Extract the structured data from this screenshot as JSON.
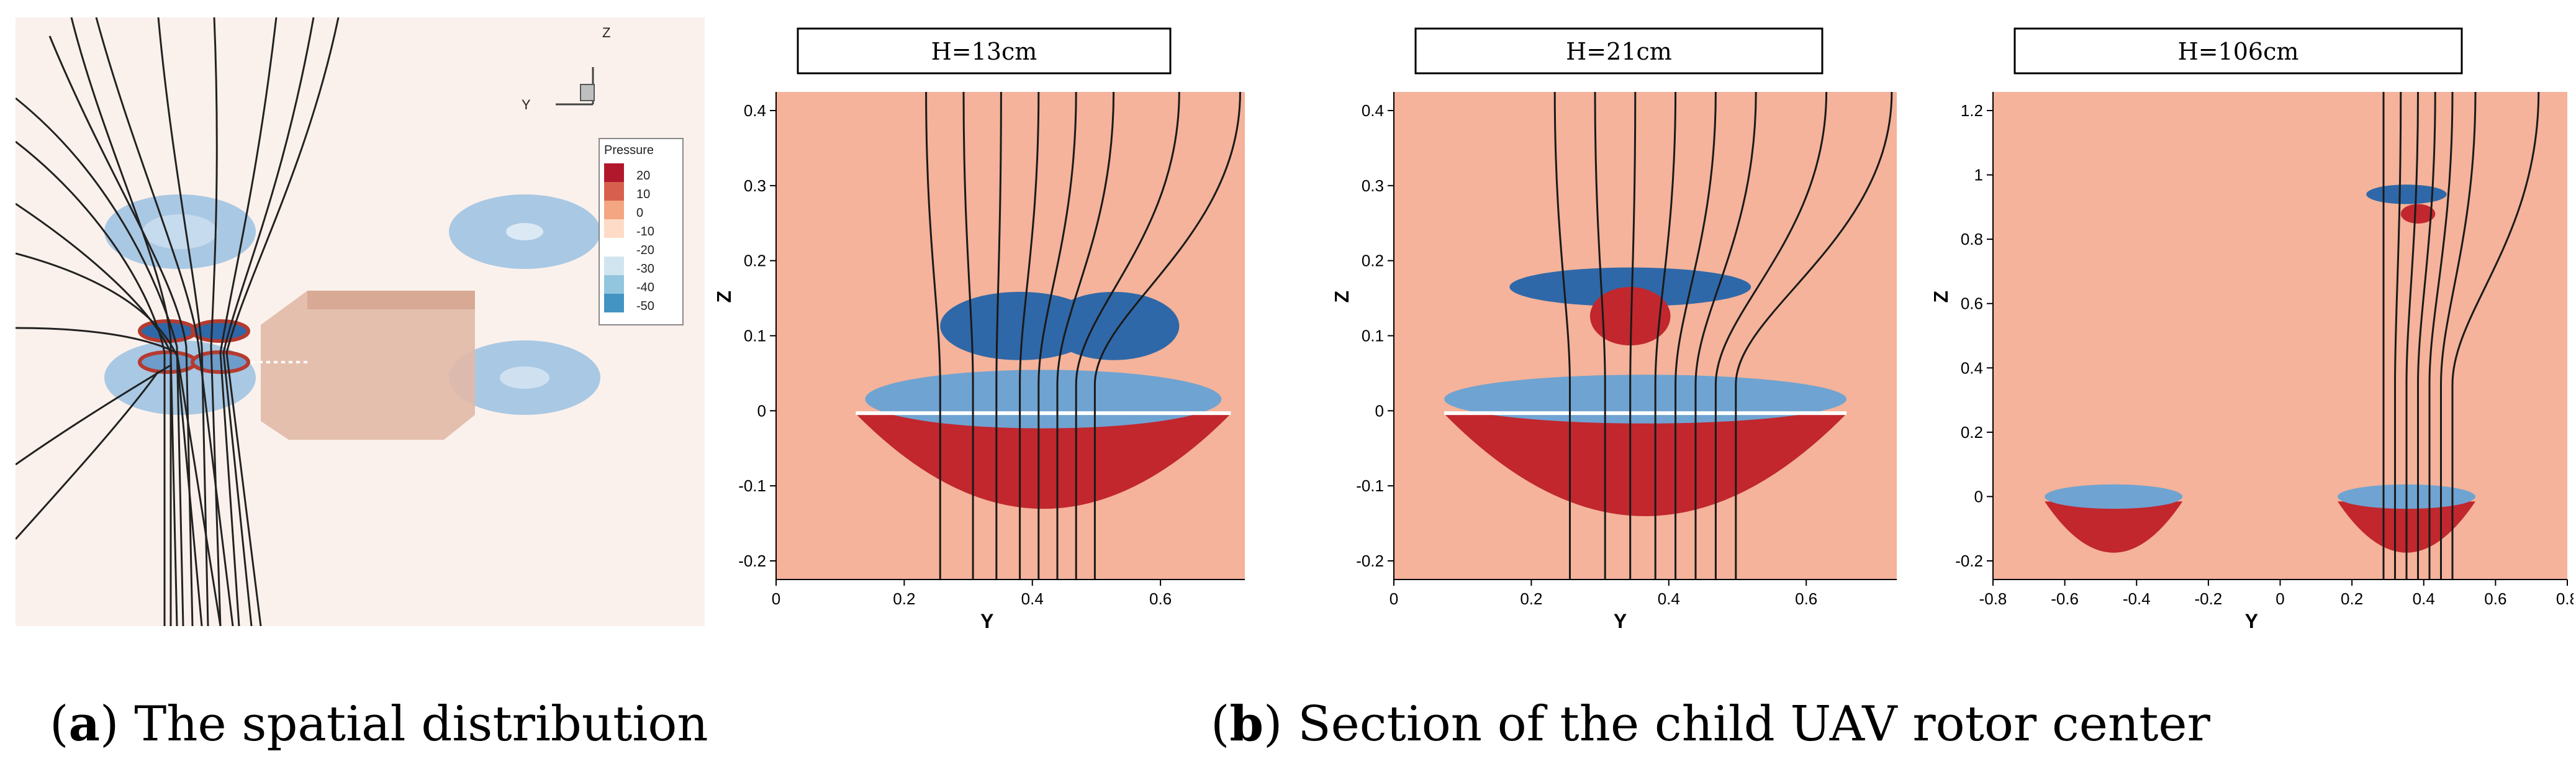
{
  "panel_a": {
    "axis_z": "Z",
    "axis_y": "Y",
    "legend": {
      "title": "Pressure",
      "levels": [
        "20",
        "10",
        "0",
        "-10",
        "-20",
        "-30",
        "-40",
        "-50"
      ],
      "colors": [
        "#b2182b",
        "#d6604d",
        "#f4a582",
        "#fddbc7",
        "#ffffff",
        "#d1e5f0",
        "#92c5de",
        "#4393c3",
        "#2166ac"
      ]
    }
  },
  "plots": [
    {
      "title": "H=13cm",
      "xlabel": "Y",
      "ylabel": "Z",
      "xticks": [
        "0",
        "0.2",
        "0.4",
        "0.6"
      ],
      "yticks": [
        "0.4",
        "0.3",
        "0.2",
        "0.1",
        "0",
        "-0.1",
        "-0.2"
      ]
    },
    {
      "title": "H=21cm",
      "xlabel": "Y",
      "ylabel": "Z",
      "xticks": [
        "0",
        "0.2",
        "0.4",
        "0.6"
      ],
      "yticks": [
        "0.4",
        "0.3",
        "0.2",
        "0.1",
        "0",
        "-0.1",
        "-0.2"
      ]
    },
    {
      "title": "H=106cm",
      "xlabel": "Y",
      "ylabel": "Z",
      "xticks": [
        "-0.8",
        "-0.6",
        "-0.4",
        "-0.2",
        "0",
        "0.2",
        "0.4",
        "0.6",
        "0.8"
      ],
      "yticks": [
        "1.2",
        "1",
        "0.8",
        "0.6",
        "0.4",
        "0.2",
        "0",
        "-0.2"
      ]
    }
  ],
  "captions": {
    "a_letter": "a",
    "a_text": " The spatial distribution",
    "b_letter": "b",
    "b_text": " Section of the child UAV rotor center"
  }
}
